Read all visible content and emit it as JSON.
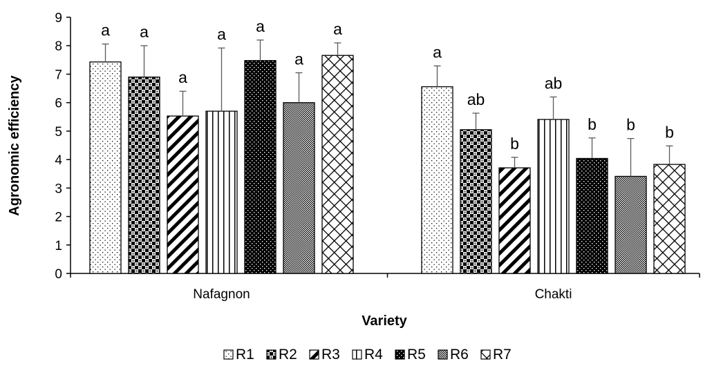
{
  "chart_data": {
    "type": "bar",
    "title": "",
    "xlabel": "Variety",
    "ylabel": "Agronomic efficiency",
    "ylim": [
      0,
      9
    ],
    "yticks": [
      0,
      1,
      2,
      3,
      4,
      5,
      6,
      7,
      8,
      9
    ],
    "grid": false,
    "legend_position": "bottom",
    "categories": [
      "Nafagnon",
      "Chakti"
    ],
    "series": [
      {
        "name": "R1",
        "pattern": "dots",
        "values": [
          7.43,
          6.56
        ],
        "errors": [
          0.63,
          0.73
        ],
        "letters": [
          "a",
          "a"
        ]
      },
      {
        "name": "R2",
        "pattern": "checker",
        "values": [
          6.9,
          5.05
        ],
        "errors": [
          1.1,
          0.58
        ],
        "letters": [
          "a",
          "ab"
        ]
      },
      {
        "name": "R3",
        "pattern": "diagonal",
        "values": [
          5.53,
          3.71
        ],
        "errors": [
          0.87,
          0.37
        ],
        "letters": [
          "a",
          "b"
        ]
      },
      {
        "name": "R4",
        "pattern": "vertical",
        "values": [
          5.7,
          5.41
        ],
        "errors": [
          2.22,
          0.79
        ],
        "letters": [
          "a",
          "ab"
        ]
      },
      {
        "name": "R5",
        "pattern": "dark-dots",
        "values": [
          7.48,
          4.04
        ],
        "errors": [
          0.72,
          0.72
        ],
        "letters": [
          "a",
          "b"
        ]
      },
      {
        "name": "R6",
        "pattern": "fine-grid",
        "values": [
          6.0,
          3.41
        ],
        "errors": [
          1.05,
          1.33
        ],
        "letters": [
          "a",
          "b"
        ]
      },
      {
        "name": "R7",
        "pattern": "crosshatch",
        "values": [
          7.66,
          3.83
        ],
        "errors": [
          0.44,
          0.65
        ],
        "letters": [
          "a",
          "b"
        ]
      }
    ]
  }
}
